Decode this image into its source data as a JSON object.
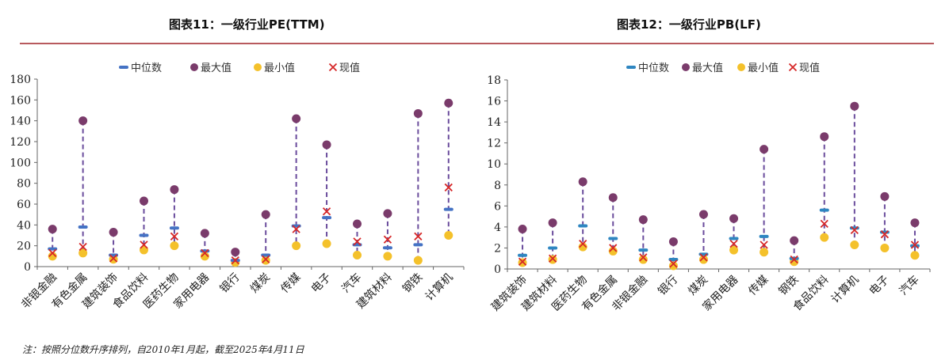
{
  "footnote": "注：按照分位数升序排列，自2010年1月起，截至2025年4月11日",
  "legend": [
    "中位数",
    "最大值",
    "最小值",
    "现值"
  ],
  "colors": {
    "median": "#4472c4",
    "median_pb": "#2e86c1",
    "max": "#7a3b6b",
    "min": "#f4c12b",
    "current": "#d62728",
    "whisker": "#6a4c9c",
    "rule": "#b85a5e"
  },
  "chart_data": [
    {
      "type": "scatter",
      "title": "图表11：一级行业PE(TTM)",
      "xlabel": "",
      "ylabel": "",
      "ylim": [
        0,
        180
      ],
      "yticks": [
        0,
        20,
        40,
        60,
        80,
        100,
        120,
        140,
        160,
        180
      ],
      "grid": false,
      "legend_position": "top-center",
      "categories": [
        "非银金融",
        "有色金属",
        "建筑装饰",
        "食品饮料",
        "医药生物",
        "家用电器",
        "银行",
        "煤炭",
        "传媒",
        "电子",
        "汽车",
        "建筑材料",
        "钢铁",
        "计算机"
      ],
      "series": [
        {
          "name": "中位数",
          "values": [
            17,
            38,
            11,
            30,
            37,
            15,
            6,
            11,
            39,
            47,
            21,
            18,
            21,
            55
          ]
        },
        {
          "name": "最大值",
          "values": [
            36,
            140,
            33,
            63,
            74,
            32,
            14,
            50,
            142,
            117,
            41,
            51,
            147,
            157
          ]
        },
        {
          "name": "最小值",
          "values": [
            10,
            13,
            7,
            16,
            20,
            10,
            4,
            6,
            20,
            22,
            11,
            10,
            6,
            30
          ]
        },
        {
          "name": "现值",
          "values": [
            13,
            19,
            8,
            21,
            29,
            13,
            6,
            7,
            36,
            53,
            24,
            26,
            29,
            76
          ]
        }
      ]
    },
    {
      "type": "scatter",
      "title": "图表12：一级行业PB(LF)",
      "xlabel": "",
      "ylabel": "",
      "ylim": [
        0,
        18
      ],
      "yticks": [
        0,
        2,
        4,
        6,
        8,
        10,
        12,
        14,
        16,
        18
      ],
      "grid": false,
      "legend_position": "top-center",
      "categories": [
        "建筑装饰",
        "建筑材料",
        "医药生物",
        "有色金属",
        "非银金融",
        "银行",
        "煤炭",
        "家用电器",
        "传媒",
        "钢铁",
        "食品饮料",
        "计算机",
        "电子",
        "汽车"
      ],
      "series": [
        {
          "name": "中位数",
          "values": [
            1.3,
            2.0,
            4.1,
            2.9,
            1.8,
            0.9,
            1.4,
            2.9,
            3.1,
            1.0,
            5.6,
            3.9,
            3.5,
            2.2
          ]
        },
        {
          "name": "最大值",
          "values": [
            3.8,
            4.4,
            8.3,
            6.8,
            4.7,
            2.6,
            5.2,
            4.8,
            11.4,
            2.7,
            12.6,
            15.5,
            6.9,
            4.4
          ]
        },
        {
          "name": "最小值",
          "values": [
            0.6,
            0.9,
            2.1,
            1.7,
            0.9,
            0.3,
            0.9,
            1.8,
            1.6,
            0.7,
            3.0,
            2.3,
            2.0,
            1.3
          ]
        },
        {
          "name": "现值",
          "values": [
            0.7,
            1.0,
            2.4,
            2.0,
            1.1,
            0.5,
            1.1,
            2.4,
            2.3,
            0.9,
            4.3,
            3.7,
            3.3,
            2.3
          ]
        }
      ]
    }
  ]
}
